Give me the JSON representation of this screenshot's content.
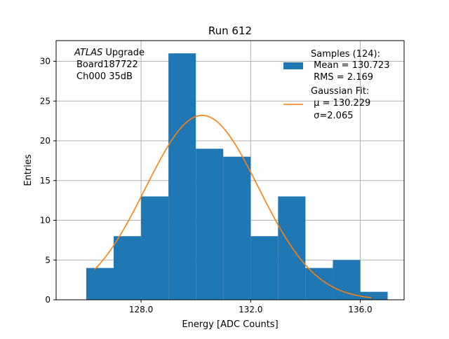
{
  "chart_data": {
    "type": "bar",
    "title": "Run 612",
    "xlabel": "Energy [ADC Counts]",
    "ylabel": "Entries",
    "xlim": [
      124.9,
      137.6
    ],
    "ylim": [
      0,
      32.6
    ],
    "x_ticks": [
      128.0,
      132.0,
      136.0
    ],
    "x_tick_labels": [
      "128.0",
      "132.0",
      "136.0"
    ],
    "y_ticks": [
      0,
      5,
      10,
      15,
      20,
      25,
      30
    ],
    "y_tick_labels": [
      "0",
      "5",
      "10",
      "15",
      "20",
      "25",
      "30"
    ],
    "grid": true,
    "bin_edges": [
      126,
      127,
      128,
      129,
      130,
      131,
      132,
      133,
      134,
      135,
      136,
      137
    ],
    "counts": [
      4,
      8,
      13,
      31,
      19,
      18,
      8,
      13,
      4,
      5,
      1
    ],
    "fit": {
      "mu": 130.229,
      "sigma": 2.065,
      "amplitude": 23.2,
      "x_range": [
        126.3,
        136.4
      ]
    },
    "annotation": [
      "ATLAS",
      " Upgrade",
      "Board187722",
      "Ch000 35dB"
    ],
    "legend": {
      "placement": "upper-right",
      "entries": [
        {
          "label_lines": [
            "Samples (124):",
            " Mean = 130.723",
            " RMS = 2.169"
          ],
          "color": "#1f77b4",
          "kind": "patch"
        },
        {
          "label_lines": [
            "Gaussian Fit:",
            " μ = 130.229",
            " σ=2.065"
          ],
          "color": "#ff7f0e",
          "kind": "line"
        }
      ]
    },
    "colors": {
      "bars": "#1f77b4",
      "fit": "#ff7f0e",
      "grid": "#b0b0b0"
    }
  }
}
